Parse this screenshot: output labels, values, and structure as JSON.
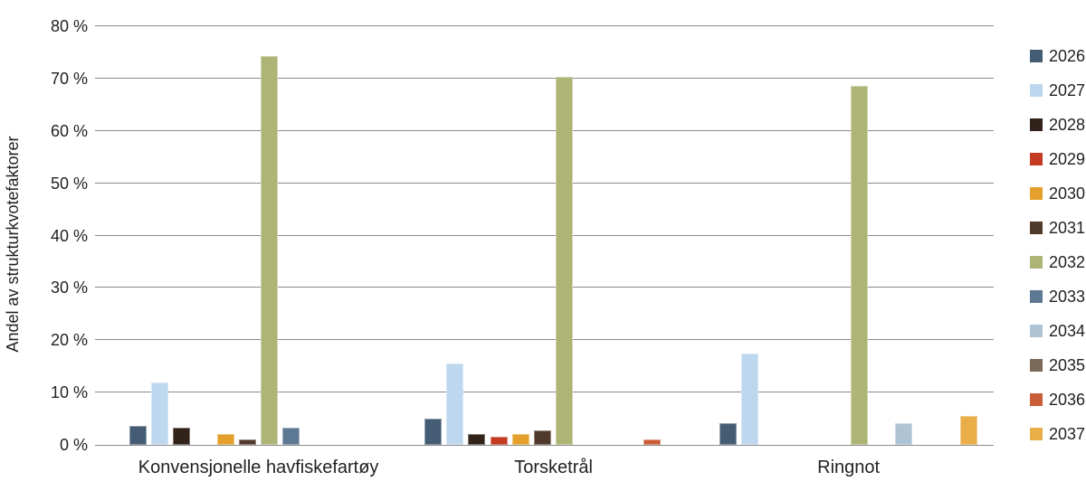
{
  "chart_data": {
    "type": "bar",
    "title": "",
    "xlabel": "",
    "ylabel": "Andel av strukturkvotefaktorer",
    "categories": [
      "Konvensjonelle havfiskefartøy",
      "Torsketrål",
      "Ringnot"
    ],
    "series": [
      {
        "name": "2026",
        "color": "#455D74",
        "values": [
          3.7,
          5.0,
          4.1
        ]
      },
      {
        "name": "2027",
        "color": "#BDD7EE",
        "values": [
          12.0,
          15.6,
          17.4
        ]
      },
      {
        "name": "2028",
        "color": "#31221A",
        "values": [
          3.2,
          2.1,
          0
        ]
      },
      {
        "name": "2029",
        "color": "#C23B22",
        "values": [
          0,
          1.5,
          0
        ]
      },
      {
        "name": "2030",
        "color": "#E5A02B",
        "values": [
          2.0,
          2.0,
          0
        ]
      },
      {
        "name": "2031",
        "color": "#503A2B",
        "values": [
          1.1,
          2.7,
          0
        ]
      },
      {
        "name": "2032",
        "color": "#AEB476",
        "values": [
          74.3,
          70.3,
          68.6
        ]
      },
      {
        "name": "2033",
        "color": "#5D7893",
        "values": [
          3.2,
          0,
          0
        ]
      },
      {
        "name": "2034",
        "color": "#AEC4D5",
        "values": [
          0,
          0,
          4.1
        ]
      },
      {
        "name": "2035",
        "color": "#7B695A",
        "values": [
          0,
          0,
          0
        ]
      },
      {
        "name": "2036",
        "color": "#C95D38",
        "values": [
          0,
          1.1,
          0
        ]
      },
      {
        "name": "2037",
        "color": "#EAAE49",
        "values": [
          0,
          0,
          5.5
        ]
      }
    ],
    "ylim": [
      0,
      80
    ],
    "yticks": [
      0,
      10,
      20,
      30,
      40,
      50,
      60,
      70,
      80
    ],
    "ytick_labels": [
      "0 %",
      "10 %",
      "20 %",
      "30 %",
      "40 %",
      "50 %",
      "60 %",
      "70 %",
      "80 %"
    ],
    "grid": true,
    "legend_position": "right",
    "legend_entries": [
      "2026",
      "2027",
      "2028",
      "2029",
      "2030",
      "2031",
      "2032",
      "2033",
      "2034",
      "2035",
      "2036",
      "2037"
    ]
  },
  "styles": {
    "grid_color": "#8A8A8A",
    "text_color": "#231F20",
    "background": "#FFFFFF"
  }
}
